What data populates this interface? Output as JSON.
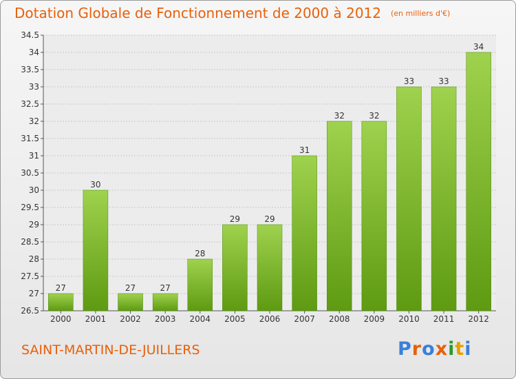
{
  "header": {
    "title": "Dotation Globale de Fonctionnement de 2000 à 2012",
    "unit": "(en milliers d'€)"
  },
  "footer": {
    "commune": "SAINT-MARTIN-DE-JUILLERS",
    "brand": "Proxiti",
    "brand_colors": [
      "#3a7fd8",
      "#e8600a",
      "#3a7fd8",
      "#e8600a",
      "#2a9a2a",
      "#e8a000",
      "#3a7fd8"
    ]
  },
  "chart_data": {
    "type": "bar",
    "title": "Dotation Globale de Fonctionnement de 2000 à 2012",
    "subtitle": "(en milliers d'€)",
    "categories": [
      "2000",
      "2001",
      "2002",
      "2003",
      "2004",
      "2005",
      "2006",
      "2007",
      "2008",
      "2009",
      "2010",
      "2011",
      "2012"
    ],
    "values": [
      27,
      30,
      27,
      27,
      28,
      29,
      29,
      31,
      32,
      32,
      33,
      33,
      34
    ],
    "ylim": [
      26.5,
      34.5
    ],
    "yticks": [
      26.5,
      27,
      27.5,
      28,
      28.5,
      29,
      29.5,
      30,
      30.5,
      31,
      31.5,
      32,
      32.5,
      33,
      33.5,
      34,
      34.5
    ],
    "grid": true,
    "bar_color_top": "#9fd24e",
    "bar_color_bottom": "#5e9a12"
  }
}
